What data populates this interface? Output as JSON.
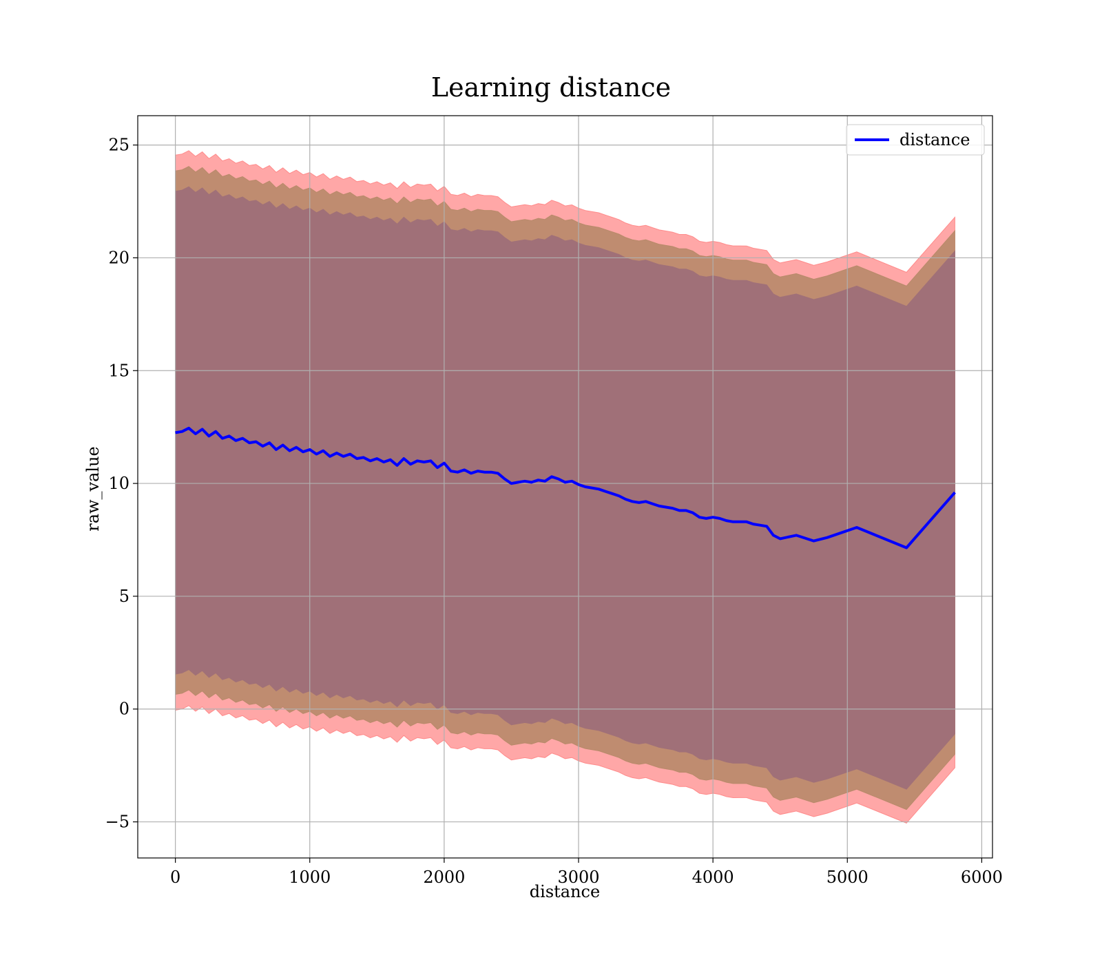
{
  "chart_data": {
    "type": "line",
    "title": "Learning distance",
    "xlabel": "distance",
    "ylabel": "raw_value",
    "xlim": [
      -280,
      6080
    ],
    "ylim": [
      -6.6,
      26.3
    ],
    "xticks": [
      0,
      1000,
      2000,
      3000,
      4000,
      5000,
      6000
    ],
    "yticks": [
      -5,
      0,
      5,
      10,
      15,
      20,
      25
    ],
    "xtick_labels": [
      "0",
      "1000",
      "2000",
      "3000",
      "4000",
      "5000",
      "6000"
    ],
    "ytick_labels": [
      "−5",
      "0",
      "5",
      "10",
      "15",
      "20",
      "25"
    ],
    "grid": true,
    "legend": {
      "position": "top-right",
      "entries": [
        {
          "label": "distance",
          "color": "#0000ff"
        }
      ]
    },
    "colors": {
      "line": "#0000ff",
      "band_outer": "#ff8a8a",
      "band_middle": "#b88a6a",
      "band_inner": "#a07078",
      "grid": "#b0b0b0"
    },
    "series": [
      {
        "name": "distance",
        "x": [
          0,
          50,
          100,
          150,
          200,
          250,
          300,
          350,
          400,
          450,
          500,
          550,
          600,
          650,
          700,
          750,
          800,
          850,
          900,
          950,
          1000,
          1050,
          1100,
          1150,
          1200,
          1250,
          1300,
          1350,
          1400,
          1450,
          1500,
          1550,
          1600,
          1650,
          1700,
          1750,
          1800,
          1850,
          1900,
          1950,
          2000,
          2050,
          2100,
          2150,
          2200,
          2250,
          2300,
          2350,
          2400,
          2450,
          2500,
          2550,
          2600,
          2650,
          2700,
          2750,
          2800,
          2850,
          2900,
          2950,
          3000,
          3050,
          3100,
          3150,
          3200,
          3250,
          3300,
          3350,
          3400,
          3450,
          3500,
          3550,
          3600,
          3650,
          3700,
          3750,
          3800,
          3850,
          3900,
          3950,
          4000,
          4050,
          4100,
          4150,
          4200,
          4250,
          4300,
          4350,
          4400,
          4450,
          4500,
          4620,
          4750,
          4850,
          5070,
          5440,
          5800
        ],
        "y": [
          12.25,
          12.3,
          12.45,
          12.2,
          12.4,
          12.1,
          12.3,
          12.0,
          12.1,
          11.9,
          12.0,
          11.8,
          11.85,
          11.65,
          11.8,
          11.5,
          11.7,
          11.45,
          11.6,
          11.4,
          11.5,
          11.3,
          11.45,
          11.2,
          11.35,
          11.2,
          11.3,
          11.1,
          11.15,
          11.0,
          11.1,
          10.95,
          11.05,
          10.8,
          11.1,
          10.85,
          11.0,
          10.95,
          11.0,
          10.7,
          10.9,
          10.55,
          10.5,
          10.6,
          10.45,
          10.55,
          10.5,
          10.5,
          10.45,
          10.2,
          10.0,
          10.05,
          10.1,
          10.05,
          10.15,
          10.1,
          10.3,
          10.2,
          10.05,
          10.1,
          9.95,
          9.85,
          9.8,
          9.75,
          9.65,
          9.55,
          9.45,
          9.3,
          9.2,
          9.15,
          9.2,
          9.1,
          9.0,
          8.95,
          8.9,
          8.8,
          8.8,
          8.7,
          8.5,
          8.45,
          8.5,
          8.45,
          8.35,
          8.3,
          8.3,
          8.3,
          8.2,
          8.15,
          8.1,
          7.7,
          7.55,
          7.7,
          7.45,
          7.6,
          8.05,
          7.15,
          9.6
        ]
      }
    ],
    "bands": [
      {
        "label": "outer",
        "half_width_start": 12.3,
        "half_width_end": 12.2
      },
      {
        "label": "middle",
        "half_width_start": 11.6,
        "half_width_end": 11.6
      },
      {
        "label": "inner",
        "half_width_start": 10.7,
        "half_width_end": 10.7
      }
    ]
  }
}
